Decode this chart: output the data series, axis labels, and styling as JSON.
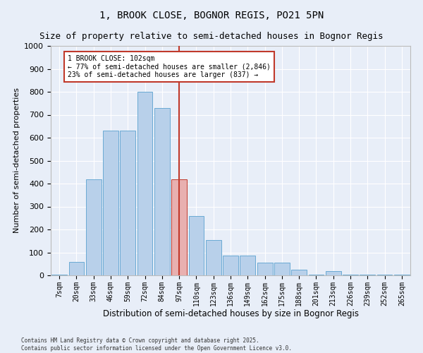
{
  "title_line1": "1, BROOK CLOSE, BOGNOR REGIS, PO21 5PN",
  "title_line2": "Size of property relative to semi-detached houses in Bognor Regis",
  "xlabel": "Distribution of semi-detached houses by size in Bognor Regis",
  "ylabel": "Number of semi-detached properties",
  "categories": [
    "7sqm",
    "20sqm",
    "33sqm",
    "46sqm",
    "59sqm",
    "72sqm",
    "84sqm",
    "97sqm",
    "110sqm",
    "123sqm",
    "136sqm",
    "149sqm",
    "162sqm",
    "175sqm",
    "188sqm",
    "201sqm",
    "213sqm",
    "226sqm",
    "239sqm",
    "252sqm",
    "265sqm"
  ],
  "bar_heights": [
    2,
    60,
    420,
    630,
    630,
    800,
    730,
    420,
    260,
    155,
    85,
    85,
    55,
    55,
    25,
    2,
    20,
    2,
    2,
    2,
    2
  ],
  "bar_color": "#b8d0ea",
  "bar_edge_color": "#6aaad4",
  "highlight_bar_index": 7,
  "highlight_bar_color": "#e8b0b0",
  "highlight_bar_edge_color": "#c0392b",
  "vline_color": "#c0392b",
  "annotation_text": "1 BROOK CLOSE: 102sqm\n← 77% of semi-detached houses are smaller (2,846)\n23% of semi-detached houses are larger (837) →",
  "annotation_box_color": "#ffffff",
  "annotation_box_edge_color": "#c0392b",
  "ylim": [
    0,
    1000
  ],
  "yticks": [
    0,
    100,
    200,
    300,
    400,
    500,
    600,
    700,
    800,
    900,
    1000
  ],
  "footer_text": "Contains HM Land Registry data © Crown copyright and database right 2025.\nContains public sector information licensed under the Open Government Licence v3.0.",
  "bg_color": "#e8eef8",
  "title_fontsize": 10,
  "subtitle_fontsize": 9,
  "tick_fontsize": 7,
  "xlabel_fontsize": 8.5,
  "ylabel_fontsize": 8
}
